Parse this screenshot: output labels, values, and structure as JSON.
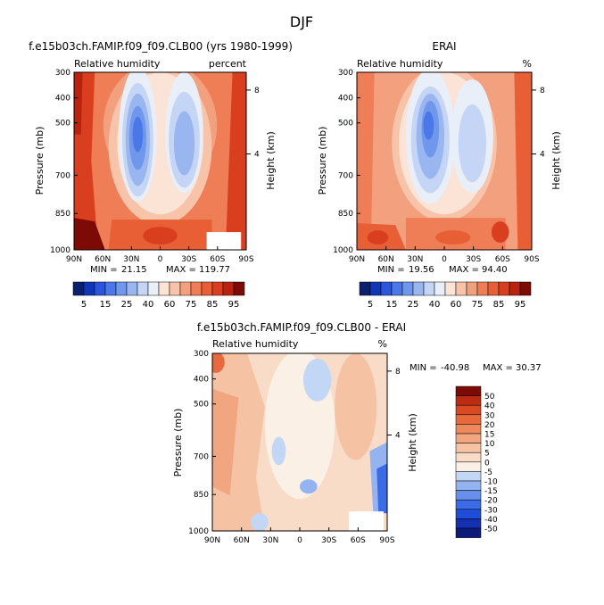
{
  "figure_title": "DJF",
  "panels": [
    {
      "title": "f.e15b03ch.FAMIP.f09_f09.CLB00 (yrs 1980-1999)",
      "left_label": "Relative humidity",
      "right_label": "percent",
      "min_label": "MIN =",
      "min_value": "21.15",
      "max_label": "MAX =",
      "max_value": "119.77"
    },
    {
      "title": "ERAI",
      "left_label": "Relative humidity",
      "right_label": "%",
      "min_label": "MIN =",
      "min_value": "19.56",
      "max_label": "MAX =",
      "max_value": "94.40"
    },
    {
      "title": "f.e15b03ch.FAMIP.f09_f09.CLB00 - ERAI",
      "left_label": "Relative humidity",
      "right_label": "%",
      "min_label": "MIN =",
      "min_value": "-40.98",
      "max_label": "MAX =",
      "max_value": "30.37"
    }
  ],
  "colors": {
    "field_palette": [
      "#0a1f6e",
      "#1036b8",
      "#2c55dd",
      "#4a78e8",
      "#6f97ec",
      "#99b6f0",
      "#c4d5f5",
      "#e9eff8",
      "#fbe3d6",
      "#f7c4aa",
      "#f3a07e",
      "#ef7d55",
      "#e85e35",
      "#d93f1f",
      "#b8220f",
      "#7e0a06"
    ],
    "diff_palette": [
      "#0c1a7a",
      "#1430b0",
      "#1f4cd8",
      "#3b6be6",
      "#6790ec",
      "#94b3f1",
      "#c2d6f6",
      "#fbf0e6",
      "#f9dcc8",
      "#f6c2a4",
      "#f2a67f",
      "#ee895d",
      "#e8693c",
      "#d94a24",
      "#bb2c13",
      "#7e0a06"
    ]
  },
  "chart_data": [
    {
      "type": "heatmap",
      "title": "f.e15b03ch.FAMIP.f09_f09.CLB00 (yrs 1980-1999)",
      "ylabel": "Pressure (mb)",
      "y2label": "Height (km)",
      "x_tick_labels": [
        "90N",
        "60N",
        "30N",
        "0",
        "30S",
        "60S",
        "90S"
      ],
      "y_tick_labels": [
        "300",
        "400",
        "500",
        "700",
        "850",
        "1000"
      ],
      "y2_tick_labels": [
        "8",
        "4"
      ],
      "levels": [
        5,
        15,
        25,
        40,
        60,
        75,
        85,
        95
      ],
      "colorbar_labels": [
        "5",
        "15",
        "25",
        "40",
        "60",
        "75",
        "85",
        "95"
      ],
      "min": 21.15,
      "max": 119.77
    },
    {
      "type": "heatmap",
      "title": "ERAI",
      "ylabel": "Pressure (mb)",
      "y2label": "Height (km)",
      "x_tick_labels": [
        "90N",
        "60N",
        "30N",
        "0",
        "30S",
        "60S",
        "90S"
      ],
      "y_tick_labels": [
        "300",
        "400",
        "500",
        "700",
        "850",
        "1000"
      ],
      "y2_tick_labels": [
        "8",
        "4"
      ],
      "levels": [
        5,
        15,
        25,
        40,
        60,
        75,
        85,
        95
      ],
      "colorbar_labels": [
        "5",
        "15",
        "25",
        "40",
        "60",
        "75",
        "85",
        "95"
      ],
      "min": 19.56,
      "max": 94.4
    },
    {
      "type": "heatmap",
      "title": "f.e15b03ch.FAMIP.f09_f09.CLB00 - ERAI",
      "ylabel": "Pressure (mb)",
      "y2label": "Height (km)",
      "x_tick_labels": [
        "90N",
        "60N",
        "30N",
        "0",
        "30S",
        "60S",
        "90S"
      ],
      "y_tick_labels": [
        "300",
        "400",
        "500",
        "700",
        "850",
        "1000"
      ],
      "y2_tick_labels": [
        "8",
        "4"
      ],
      "levels": [
        -50,
        -40,
        -30,
        -20,
        -15,
        -10,
        -5,
        0,
        5,
        10,
        15,
        20,
        30,
        40,
        50
      ],
      "colorbar_labels": [
        "50",
        "40",
        "30",
        "20",
        "15",
        "10",
        "5",
        "0",
        "-5",
        "-10",
        "-15",
        "-20",
        "-30",
        "-40",
        "-50"
      ],
      "min": -40.98,
      "max": 30.37
    }
  ]
}
